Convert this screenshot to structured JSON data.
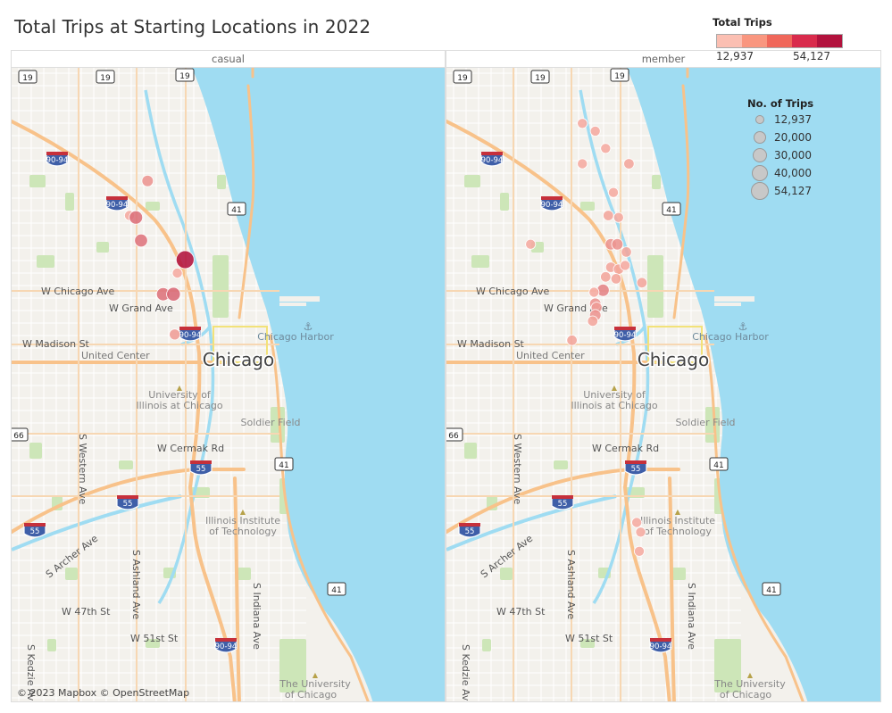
{
  "title": "Total Trips at Starting Locations in 2022",
  "colors": {
    "water": "#9fdcf2",
    "land": "#f3f1ec",
    "park": "#cde6b8",
    "road": "#ffffff",
    "highway": "#f8c28a",
    "min": "#fbb7a8",
    "max": "#b2123d"
  },
  "legend_color": {
    "title": "Total Trips",
    "min_label": "12,937",
    "max_label": "54,127",
    "ramp": [
      "#fbbfb2",
      "#f9967f",
      "#f0675a",
      "#d92b4c",
      "#b2123d"
    ]
  },
  "legend_size": {
    "title": "No. of Trips",
    "items": [
      {
        "label": "12,937",
        "value": 12937
      },
      {
        "label": "20,000",
        "value": 20000
      },
      {
        "label": "30,000",
        "value": 30000
      },
      {
        "label": "40,000",
        "value": 40000
      },
      {
        "label": "54,127",
        "value": 54127
      }
    ]
  },
  "panels": [
    {
      "label": "casual"
    },
    {
      "label": "member"
    }
  ],
  "map_labels": {
    "city": "Chicago",
    "streets": [
      "W Chicago Ave",
      "W Grand Ave",
      "W Madison St",
      "W Cermak Rd",
      "S Western Ave",
      "S Archer Ave",
      "S Ashland Ave",
      "W 47th St",
      "W 51st St",
      "S Indiana Ave",
      "S Kedzie Ave"
    ],
    "places": [
      "United Center",
      "University of",
      "Illinois at Chicago",
      "Soldier Field",
      "Chicago Harbor",
      "Illinois Institute",
      "of Technology",
      "The University",
      "of Chicago"
    ],
    "shields": [
      "19",
      "90-94",
      "41",
      "55",
      "66"
    ]
  },
  "attribution": "© 2023 Mapbox © OpenStreetMap",
  "chart_data": {
    "type": "scatter",
    "title": "Total Trips at Starting Locations in 2022",
    "size_field": "No. of Trips",
    "color_field": "Total Trips",
    "range": [
      12937,
      54127
    ],
    "series": [
      {
        "name": "casual",
        "points": [
          {
            "lng": -87.655,
            "lat": 41.928,
            "trips": 16000
          },
          {
            "lng": -87.669,
            "lat": 41.91,
            "trips": 13500
          },
          {
            "lng": -87.664,
            "lat": 41.909,
            "trips": 23000
          },
          {
            "lng": -87.66,
            "lat": 41.897,
            "trips": 22000
          },
          {
            "lng": -87.626,
            "lat": 41.887,
            "trips": 54127
          },
          {
            "lng": -87.632,
            "lat": 41.88,
            "trips": 13500
          },
          {
            "lng": -87.643,
            "lat": 41.869,
            "trips": 22500
          },
          {
            "lng": -87.635,
            "lat": 41.869,
            "trips": 25000
          },
          {
            "lng": -87.634,
            "lat": 41.848,
            "trips": 15000
          }
        ]
      },
      {
        "name": "member",
        "points": [
          {
            "lng": -87.98,
            "lat": 41.958,
            "trips": 13500
          },
          {
            "lng": -87.97,
            "lat": 41.954,
            "trips": 13500
          },
          {
            "lng": -87.962,
            "lat": 41.945,
            "trips": 13500
          },
          {
            "lng": -87.98,
            "lat": 41.937,
            "trips": 13500
          },
          {
            "lng": -87.944,
            "lat": 41.937,
            "trips": 14000
          },
          {
            "lng": -87.956,
            "lat": 41.922,
            "trips": 13500
          },
          {
            "lng": -87.96,
            "lat": 41.91,
            "trips": 14000
          },
          {
            "lng": -87.952,
            "lat": 41.909,
            "trips": 13500
          },
          {
            "lng": -88.02,
            "lat": 41.895,
            "trips": 13500
          },
          {
            "lng": -87.958,
            "lat": 41.895,
            "trips": 16000
          },
          {
            "lng": -87.953,
            "lat": 41.895,
            "trips": 16000
          },
          {
            "lng": -87.946,
            "lat": 41.891,
            "trips": 14000
          },
          {
            "lng": -87.958,
            "lat": 41.883,
            "trips": 14000
          },
          {
            "lng": -87.952,
            "lat": 41.882,
            "trips": 14000
          },
          {
            "lng": -87.947,
            "lat": 41.884,
            "trips": 13500
          },
          {
            "lng": -87.962,
            "lat": 41.878,
            "trips": 14000
          },
          {
            "lng": -87.954,
            "lat": 41.877,
            "trips": 14000
          },
          {
            "lng": -87.934,
            "lat": 41.875,
            "trips": 14000
          },
          {
            "lng": -87.964,
            "lat": 41.871,
            "trips": 19000
          },
          {
            "lng": -87.971,
            "lat": 41.87,
            "trips": 13500
          },
          {
            "lng": -87.97,
            "lat": 41.864,
            "trips": 16000
          },
          {
            "lng": -87.969,
            "lat": 41.862,
            "trips": 15000
          },
          {
            "lng": -87.97,
            "lat": 41.858,
            "trips": 16000
          },
          {
            "lng": -87.972,
            "lat": 41.855,
            "trips": 14000
          },
          {
            "lng": -87.988,
            "lat": 41.845,
            "trips": 14000
          },
          {
            "lng": -87.938,
            "lat": 41.75,
            "trips": 13500
          },
          {
            "lng": -87.935,
            "lat": 41.745,
            "trips": 13500
          },
          {
            "lng": -87.936,
            "lat": 41.735,
            "trips": 13500
          }
        ]
      }
    ]
  }
}
